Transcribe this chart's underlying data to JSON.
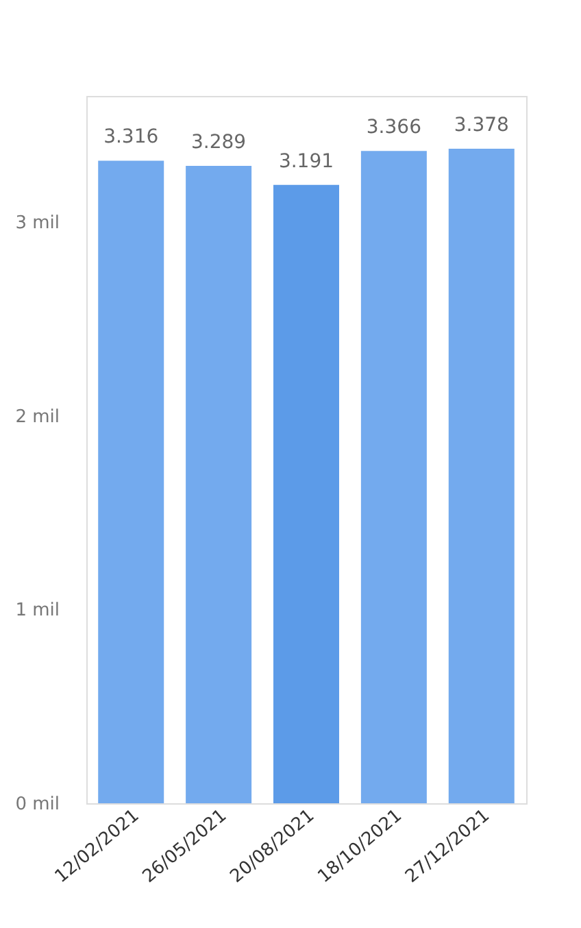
{
  "chart_data": {
    "type": "bar",
    "categories": [
      "12/02/2021",
      "26/05/2021",
      "20/08/2021",
      "18/10/2021",
      "27/12/2021"
    ],
    "values": [
      3.316,
      3.289,
      3.191,
      3.366,
      3.378
    ],
    "value_labels": [
      "3.316",
      "3.289",
      "3.191",
      "3.366",
      "3.378"
    ],
    "colors": [
      "#73aaee",
      "#73aaee",
      "#5c9be8",
      "#73aaee",
      "#73aaee"
    ],
    "ylim": [
      0,
      3.65
    ],
    "yticks": [
      {
        "value": 0,
        "label": "0 mil"
      },
      {
        "value": 1,
        "label": "1 mil"
      },
      {
        "value": 2,
        "label": "2 mil"
      },
      {
        "value": 3,
        "label": "3 mil"
      }
    ],
    "grid": false
  }
}
